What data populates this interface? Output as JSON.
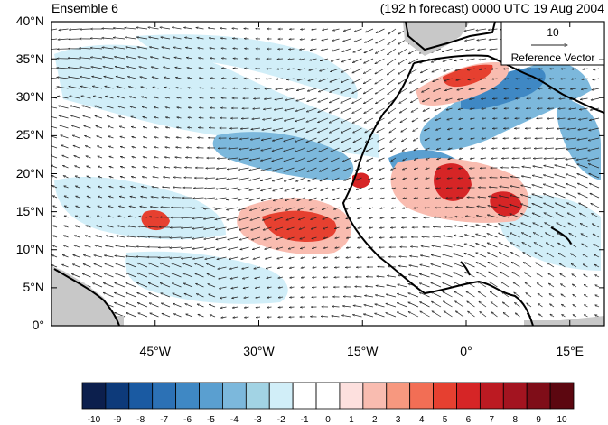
{
  "title": {
    "left": "Ensemble 6",
    "right": "(192 h forecast) 0000 UTC 19 Aug 2004"
  },
  "map": {
    "lon_range": [
      -60,
      20
    ],
    "lat_range": [
      0,
      40
    ],
    "lat_ticks": [
      {
        "value": 40,
        "label": "40°N"
      },
      {
        "value": 35,
        "label": "35°N"
      },
      {
        "value": 30,
        "label": "30°N"
      },
      {
        "value": 25,
        "label": "25°N"
      },
      {
        "value": 20,
        "label": "20°N"
      },
      {
        "value": 15,
        "label": "15°N"
      },
      {
        "value": 10,
        "label": "10°N"
      },
      {
        "value": 5,
        "label": "5°N"
      },
      {
        "value": 0,
        "label": "0°"
      }
    ],
    "lon_ticks": [
      {
        "value": -45,
        "label": "45°W"
      },
      {
        "value": -30,
        "label": "30°W"
      },
      {
        "value": -15,
        "label": "15°W"
      },
      {
        "value": 0,
        "label": "0°"
      },
      {
        "value": 15,
        "label": "15°E"
      }
    ],
    "reference_vector": {
      "magnitude": "10",
      "label": "Reference Vector"
    }
  },
  "colorbar": {
    "levels": [
      "-10",
      "-9",
      "-8",
      "-7",
      "-6",
      "-5",
      "-4",
      "-3",
      "-2",
      "-1",
      "0",
      "1",
      "2",
      "3",
      "4",
      "5",
      "6",
      "7",
      "8",
      "9",
      "10"
    ],
    "colors": [
      "#0c1f4d",
      "#0d3a7a",
      "#1a5aa2",
      "#2c71b5",
      "#3f88c4",
      "#5a9fd0",
      "#7cb8dc",
      "#a2d3e4",
      "#d1eef8",
      "#ffffff",
      "#ffffff",
      "#fde0de",
      "#f9bcb0",
      "#f7987f",
      "#f26e55",
      "#e64030",
      "#d62526",
      "#bc1a22",
      "#a31420",
      "#7f0d18",
      "#5c0710"
    ]
  }
}
